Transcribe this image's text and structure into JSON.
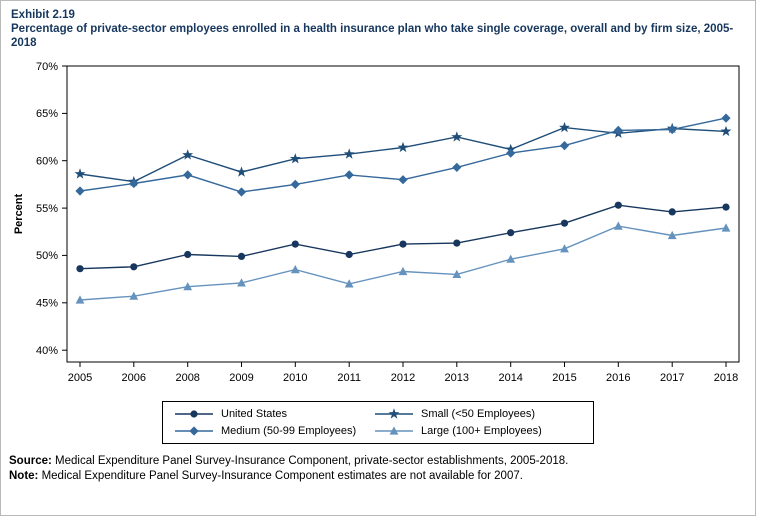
{
  "header": {
    "exhibit": "Exhibit 2.19",
    "title": "Percentage of private-sector employees enrolled in a health insurance plan who take single coverage, overall and by firm size, 2005-2018"
  },
  "chart_data": {
    "type": "line",
    "x": [
      2005,
      2006,
      2008,
      2009,
      2010,
      2011,
      2012,
      2013,
      2014,
      2015,
      2016,
      2017,
      2018
    ],
    "x_note": "2007 not shown; estimates not available",
    "ylabel": "Percent",
    "yticks": [
      40,
      45,
      50,
      55,
      60,
      65,
      70
    ],
    "ytick_labels": [
      "40%",
      "45%",
      "50%",
      "55%",
      "60%",
      "65%",
      "70%"
    ],
    "ylim": [
      38.75,
      70
    ],
    "grid": false,
    "legend_position": "bottom",
    "series": [
      {
        "name": "United States",
        "marker": "circle",
        "color": "#17375E",
        "values": [
          48.6,
          48.8,
          50.1,
          49.9,
          51.2,
          50.1,
          51.2,
          51.3,
          52.4,
          53.4,
          55.3,
          54.6,
          55.1
        ]
      },
      {
        "name": "Small (<50 Employees)",
        "marker": "star",
        "color": "#1F4E79",
        "values": [
          58.6,
          57.8,
          60.6,
          58.8,
          60.2,
          60.7,
          61.4,
          62.5,
          61.2,
          63.5,
          62.9,
          63.4,
          63.1
        ]
      },
      {
        "name": "Medium (50-99 Employees)",
        "marker": "diamond",
        "color": "#35689B",
        "values": [
          56.8,
          57.6,
          58.5,
          56.7,
          57.5,
          58.5,
          58.0,
          59.3,
          60.8,
          61.6,
          63.2,
          63.3,
          64.5
        ]
      },
      {
        "name": "Large (100+ Employees)",
        "marker": "triangle",
        "color": "#6593BE",
        "values": [
          45.3,
          45.7,
          46.7,
          47.1,
          48.5,
          47.0,
          48.3,
          48.0,
          49.6,
          50.7,
          53.1,
          52.1,
          52.9
        ]
      }
    ]
  },
  "footer": {
    "source_label": "Source:",
    "source_text": " Medical Expenditure Panel Survey-Insurance Component, private-sector establishments, 2005-2018.",
    "note_label": "Note:",
    "note_text": " Medical Expenditure Panel Survey-Insurance Component estimates are not available for 2007."
  }
}
